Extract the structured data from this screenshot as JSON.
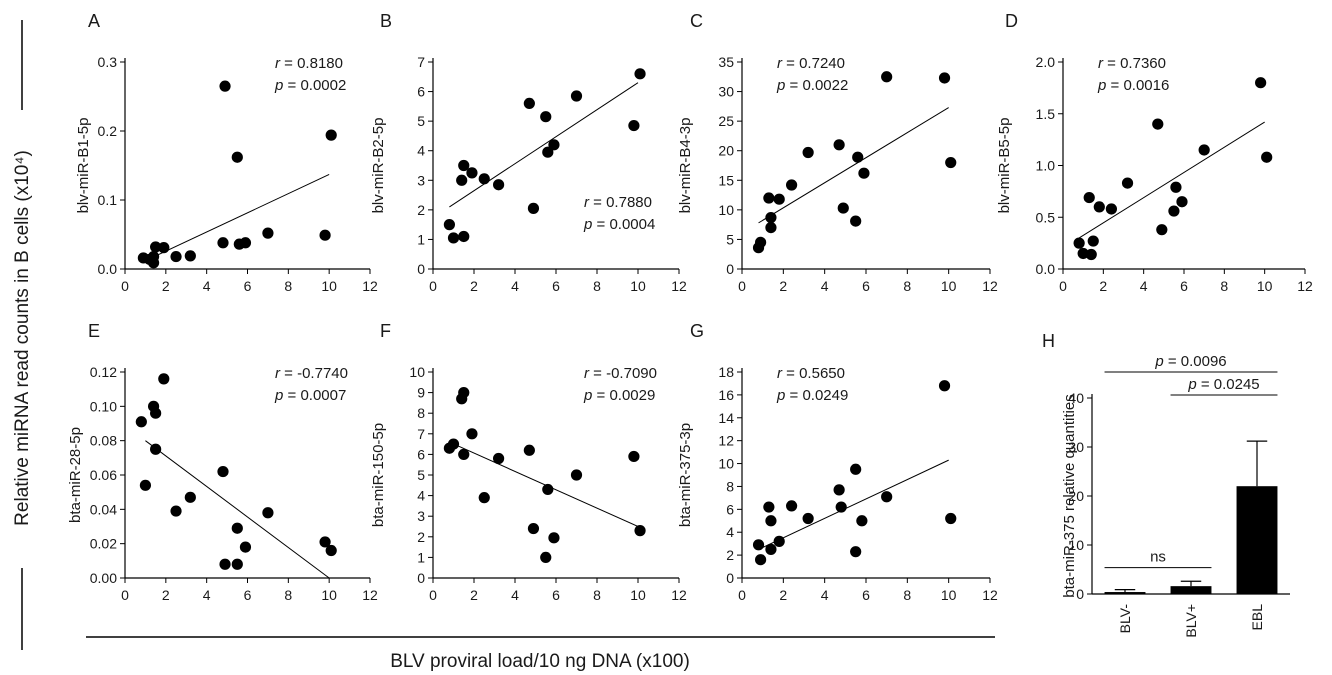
{
  "figure": {
    "shared_ylabel": "Relative miRNA read counts in B cells (x10⁴)",
    "shared_xlabel": "BLV proviral load/10 ng DNA (x100)"
  },
  "chart_data": [
    {
      "panel": "A",
      "type": "scatter",
      "ylabel": "blv-miR-B1-5p",
      "xlim": [
        0,
        12
      ],
      "xticks": [
        "0",
        "2",
        "4",
        "6",
        "8",
        "10",
        "12"
      ],
      "ylim": [
        0,
        0.3
      ],
      "yticks": [
        "0.0",
        "0.1",
        "0.2",
        "0.3"
      ],
      "stats": {
        "r": "0.8180",
        "p": "0.0002"
      },
      "stats_pos": "top-right",
      "fit": [
        [
          1.0,
          0.012
        ],
        [
          10.0,
          0.137
        ]
      ],
      "points": [
        [
          0.9,
          0.016
        ],
        [
          1.2,
          0.014
        ],
        [
          1.4,
          0.018
        ],
        [
          1.4,
          0.009
        ],
        [
          1.5,
          0.032
        ],
        [
          1.9,
          0.031
        ],
        [
          2.5,
          0.018
        ],
        [
          3.2,
          0.019
        ],
        [
          4.8,
          0.038
        ],
        [
          4.9,
          0.265
        ],
        [
          5.5,
          0.162
        ],
        [
          5.6,
          0.036
        ],
        [
          5.9,
          0.038
        ],
        [
          7.0,
          0.052
        ],
        [
          9.8,
          0.049
        ],
        [
          10.1,
          0.194
        ]
      ]
    },
    {
      "panel": "B",
      "type": "scatter",
      "ylabel": "blv-miR-B2-5p",
      "xlim": [
        0,
        12
      ],
      "xticks": [
        "0",
        "2",
        "4",
        "6",
        "8",
        "10",
        "12"
      ],
      "ylim": [
        0,
        7
      ],
      "yticks": [
        "0",
        "1",
        "2",
        "3",
        "4",
        "5",
        "6",
        "7"
      ],
      "stats": {
        "r": "0.7880",
        "p": "0.0004"
      },
      "stats_pos": "bottom-right",
      "fit": [
        [
          0.8,
          2.1
        ],
        [
          10.0,
          6.3
        ]
      ],
      "points": [
        [
          0.8,
          1.5
        ],
        [
          1.0,
          1.05
        ],
        [
          1.4,
          3.0
        ],
        [
          1.5,
          3.5
        ],
        [
          1.5,
          1.1
        ],
        [
          1.9,
          3.25
        ],
        [
          2.5,
          3.05
        ],
        [
          3.2,
          2.85
        ],
        [
          4.7,
          5.6
        ],
        [
          4.9,
          2.05
        ],
        [
          5.5,
          5.15
        ],
        [
          5.6,
          3.95
        ],
        [
          5.9,
          4.2
        ],
        [
          7.0,
          5.85
        ],
        [
          9.8,
          4.85
        ],
        [
          10.1,
          6.6
        ]
      ]
    },
    {
      "panel": "C",
      "type": "scatter",
      "ylabel": "blv-miR-B4-3p",
      "xlim": [
        0,
        12
      ],
      "xticks": [
        "0",
        "2",
        "4",
        "6",
        "8",
        "10",
        "12"
      ],
      "ylim": [
        0,
        35
      ],
      "yticks": [
        "0",
        "5",
        "10",
        "15",
        "20",
        "25",
        "30",
        "35"
      ],
      "stats": {
        "r": "0.7240",
        "p": "0.0022"
      },
      "stats_pos": "top-left",
      "fit": [
        [
          0.8,
          7.8
        ],
        [
          10.0,
          27.3
        ]
      ],
      "points": [
        [
          0.8,
          3.6
        ],
        [
          0.9,
          4.5
        ],
        [
          1.3,
          12.0
        ],
        [
          1.4,
          8.7
        ],
        [
          1.4,
          7.0
        ],
        [
          1.8,
          11.8
        ],
        [
          2.4,
          14.2
        ],
        [
          3.2,
          19.7
        ],
        [
          4.7,
          21.0
        ],
        [
          4.9,
          10.3
        ],
        [
          5.5,
          8.1
        ],
        [
          5.6,
          18.9
        ],
        [
          5.9,
          16.2
        ],
        [
          7.0,
          32.5
        ],
        [
          9.8,
          32.3
        ],
        [
          10.1,
          18.0
        ]
      ]
    },
    {
      "panel": "D",
      "type": "scatter",
      "ylabel": "blv-miR-B5-5p",
      "xlim": [
        0,
        12
      ],
      "xticks": [
        "0",
        "2",
        "4",
        "6",
        "8",
        "10",
        "12"
      ],
      "ylim": [
        0,
        2.0
      ],
      "yticks": [
        "0.0",
        "0.5",
        "1.0",
        "1.5",
        "2.0"
      ],
      "stats": {
        "r": "0.7360",
        "p": "0.0016"
      },
      "stats_pos": "top-left",
      "fit": [
        [
          0.8,
          0.3
        ],
        [
          10.0,
          1.42
        ]
      ],
      "points": [
        [
          0.8,
          0.25
        ],
        [
          1.0,
          0.15
        ],
        [
          1.3,
          0.69
        ],
        [
          1.4,
          0.14
        ],
        [
          1.5,
          0.27
        ],
        [
          1.8,
          0.6
        ],
        [
          2.4,
          0.58
        ],
        [
          3.2,
          0.83
        ],
        [
          4.7,
          1.4
        ],
        [
          4.9,
          0.38
        ],
        [
          5.5,
          0.56
        ],
        [
          5.6,
          0.79
        ],
        [
          5.9,
          0.65
        ],
        [
          7.0,
          1.15
        ],
        [
          9.8,
          1.8
        ],
        [
          10.1,
          1.08
        ]
      ]
    },
    {
      "panel": "E",
      "type": "scatter",
      "ylabel": "bta-miR-28-5p",
      "xlim": [
        0,
        12
      ],
      "xticks": [
        "0",
        "2",
        "4",
        "6",
        "8",
        "10",
        "12"
      ],
      "ylim": [
        0,
        0.12
      ],
      "yticks": [
        "0.00",
        "0.02",
        "0.04",
        "0.06",
        "0.08",
        "0.10",
        "0.12"
      ],
      "stats": {
        "r": "-0.7740",
        "p": "0.0007"
      },
      "stats_pos": "top-right",
      "fit": [
        [
          1.0,
          0.08
        ],
        [
          10.0,
          0.0
        ]
      ],
      "points": [
        [
          0.8,
          0.091
        ],
        [
          1.0,
          0.054
        ],
        [
          1.4,
          0.1
        ],
        [
          1.5,
          0.096
        ],
        [
          1.5,
          0.075
        ],
        [
          1.9,
          0.116
        ],
        [
          2.5,
          0.039
        ],
        [
          3.2,
          0.047
        ],
        [
          4.8,
          0.062
        ],
        [
          4.9,
          0.008
        ],
        [
          5.5,
          0.008
        ],
        [
          5.5,
          0.029
        ],
        [
          5.9,
          0.018
        ],
        [
          7.0,
          0.038
        ],
        [
          9.8,
          0.021
        ],
        [
          10.1,
          0.016
        ]
      ]
    },
    {
      "panel": "F",
      "type": "scatter",
      "ylabel": "bta-miR-150-5p",
      "xlim": [
        0,
        12
      ],
      "xticks": [
        "0",
        "2",
        "4",
        "6",
        "8",
        "10",
        "12"
      ],
      "ylim": [
        0,
        10
      ],
      "yticks": [
        "0",
        "1",
        "2",
        "3",
        "4",
        "5",
        "6",
        "7",
        "8",
        "9",
        "10"
      ],
      "stats": {
        "r": "-0.7090",
        "p": "0.0029"
      },
      "stats_pos": "top-right",
      "fit": [
        [
          0.8,
          6.6
        ],
        [
          10.0,
          2.5
        ]
      ],
      "points": [
        [
          0.8,
          6.3
        ],
        [
          1.0,
          6.5
        ],
        [
          1.4,
          8.7
        ],
        [
          1.5,
          9.0
        ],
        [
          1.5,
          6.0
        ],
        [
          1.9,
          7.0
        ],
        [
          2.5,
          3.9
        ],
        [
          3.2,
          5.8
        ],
        [
          4.7,
          6.2
        ],
        [
          4.9,
          2.4
        ],
        [
          5.5,
          1.0
        ],
        [
          5.6,
          4.3
        ],
        [
          5.9,
          1.95
        ],
        [
          7.0,
          5.0
        ],
        [
          9.8,
          5.9
        ],
        [
          10.1,
          2.3
        ]
      ]
    },
    {
      "panel": "G",
      "type": "scatter",
      "ylabel": "bta-miR-375-3p",
      "xlim": [
        0,
        12
      ],
      "xticks": [
        "0",
        "2",
        "4",
        "6",
        "8",
        "10",
        "12"
      ],
      "ylim": [
        0,
        18
      ],
      "yticks": [
        "0",
        "2",
        "4",
        "6",
        "8",
        "10",
        "12",
        "14",
        "16",
        "18"
      ],
      "stats": {
        "r": "0.5650",
        "p": "0.0249"
      },
      "stats_pos": "top-left",
      "fit": [
        [
          0.8,
          2.5
        ],
        [
          10.0,
          10.3
        ]
      ],
      "points": [
        [
          0.8,
          2.9
        ],
        [
          0.9,
          1.6
        ],
        [
          1.3,
          6.2
        ],
        [
          1.4,
          2.5
        ],
        [
          1.4,
          5.0
        ],
        [
          1.8,
          3.2
        ],
        [
          2.4,
          6.3
        ],
        [
          3.2,
          5.2
        ],
        [
          4.7,
          7.7
        ],
        [
          4.8,
          6.2
        ],
        [
          5.5,
          2.3
        ],
        [
          5.5,
          9.5
        ],
        [
          5.8,
          5.0
        ],
        [
          7.0,
          7.1
        ],
        [
          9.8,
          16.8
        ],
        [
          10.1,
          5.2
        ]
      ]
    },
    {
      "panel": "H",
      "type": "bar",
      "ylabel": "bta-miR-375 relative quantities",
      "categories": [
        "BLV-",
        "BLV+",
        "EBL"
      ],
      "values": [
        0.4,
        1.6,
        22.0
      ],
      "errors": [
        0.5,
        1.0,
        9.2
      ],
      "ylim": [
        0,
        40
      ],
      "yticks": [
        "0",
        "10",
        "20",
        "30",
        "40"
      ],
      "bar_color": "#000000",
      "comparisons": [
        {
          "from": 0,
          "to": 1,
          "label": "ns"
        },
        {
          "from": 0,
          "to": 2,
          "label": "p = 0.0096"
        },
        {
          "from": 1,
          "to": 2,
          "label": "p = 0.0245"
        }
      ]
    }
  ]
}
